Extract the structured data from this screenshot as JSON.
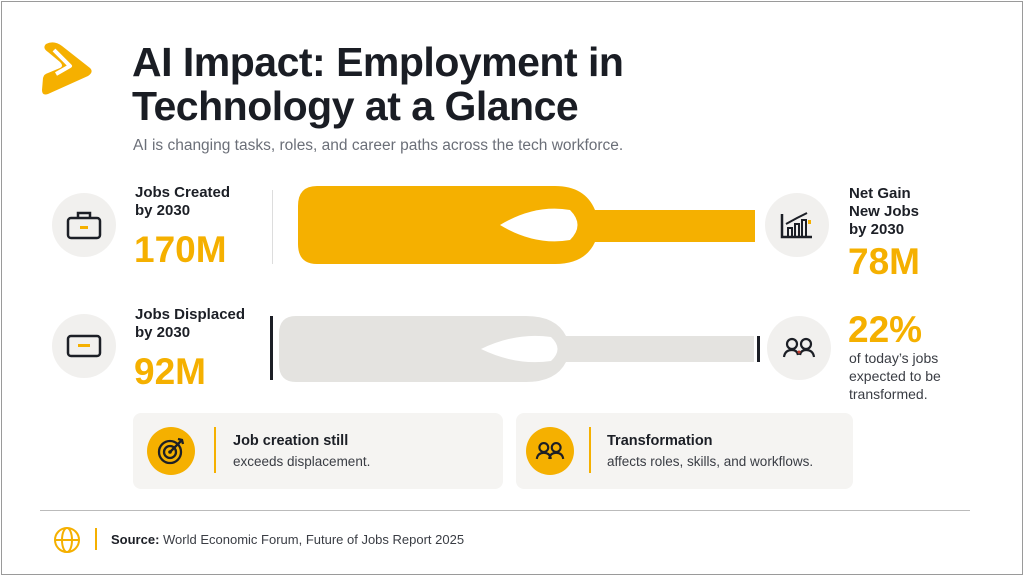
{
  "header": {
    "title_line1": "AI Impact: Employment in",
    "title_line2": "Technology at a Glance",
    "subtitle": "AI is changing tasks, roles, and career paths across the tech workforce."
  },
  "stats": {
    "created": {
      "label_line1": "Jobs Created",
      "label_line2": "by 2030",
      "value": "170M",
      "icon": "briefcase-icon"
    },
    "displaced": {
      "label_line1": "Jobs Displaced",
      "label_line2": "by 2030",
      "value": "92M",
      "icon": "card-icon"
    },
    "net_gain": {
      "label_line1": "Net Gain",
      "label_line2": "New Jobs",
      "label_line3": "by 2030",
      "value": "78M",
      "icon": "bar-chart-up-icon"
    },
    "transformed": {
      "value": "22%",
      "desc_line1": "of today’s jobs",
      "desc_line2": "expected to be",
      "desc_line3": "transformed.",
      "icon": "people-icon"
    }
  },
  "cards": [
    {
      "title": "Job creation still",
      "desc": "exceeds displacement.",
      "icon": "target-icon"
    },
    {
      "title": "Transformation",
      "desc": "affects roles, skills, and workflows.",
      "icon": "people-icon"
    }
  ],
  "footer": {
    "source_label": "Source:",
    "source_text": " World Economic Forum, Future of Jobs Report 2025",
    "icon": "globe-icon"
  },
  "colors": {
    "accent": "#F5B000",
    "bar_gray": "#E4E3E0",
    "text": "#1C1F26"
  }
}
